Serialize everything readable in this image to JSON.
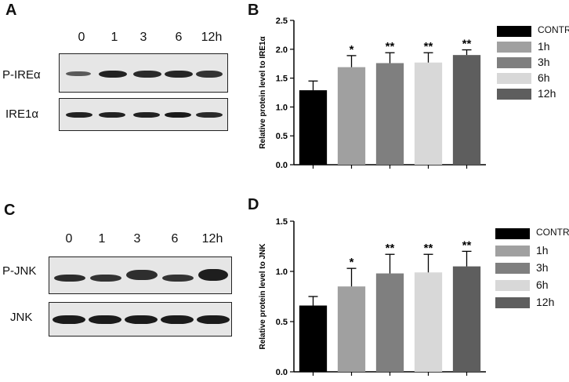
{
  "panels": {
    "A": {
      "letter": "A",
      "lanes": [
        "0",
        "1",
        "3",
        "6",
        "12h"
      ],
      "rows": [
        "P-IREα",
        "IRE1α"
      ]
    },
    "C": {
      "letter": "C",
      "lanes": [
        "0",
        "1",
        "3",
        "6",
        "12h"
      ],
      "rows": [
        "P-JNK",
        "JNK"
      ]
    },
    "B": {
      "letter": "B"
    },
    "D": {
      "letter": "D"
    }
  },
  "bar_colors": [
    "#000000",
    "#a0a0a0",
    "#7f7f7f",
    "#d8d8d8",
    "#5e5e5e"
  ],
  "chart_data": [
    {
      "type": "bar",
      "panel": "B",
      "categories": [
        "CONTROL",
        "1h",
        "3h",
        "6h",
        "12h"
      ],
      "values": [
        1.29,
        1.69,
        1.76,
        1.77,
        1.9
      ],
      "errors": [
        0.16,
        0.2,
        0.18,
        0.17,
        0.09
      ],
      "significance": [
        "",
        "*",
        "**",
        "**",
        "**"
      ],
      "ylabel": "Relative  protein level to IRE1α",
      "ylim": [
        0,
        2.5
      ],
      "yticks": [
        "0.0",
        "0.5",
        "1.0",
        "1.5",
        "2.0",
        "2.5"
      ],
      "legend": [
        "CONTROL",
        "1h",
        "3h",
        "6h",
        "12h"
      ],
      "legend_position": "right"
    },
    {
      "type": "bar",
      "panel": "D",
      "categories": [
        "CONTROL",
        "1h",
        "3h",
        "6h",
        "12h"
      ],
      "values": [
        0.66,
        0.85,
        0.98,
        0.99,
        1.05
      ],
      "errors": [
        0.09,
        0.18,
        0.19,
        0.18,
        0.15
      ],
      "significance": [
        "",
        "*",
        "**",
        "**",
        "**"
      ],
      "ylabel": "Relative  protein level to JNK",
      "ylim": [
        0,
        1.5
      ],
      "yticks": [
        "0.0",
        "0.5",
        "1.0",
        "1.5"
      ],
      "legend": [
        "CONTROL",
        "1h",
        "3h",
        "6h",
        "12h"
      ],
      "legend_position": "right"
    }
  ]
}
